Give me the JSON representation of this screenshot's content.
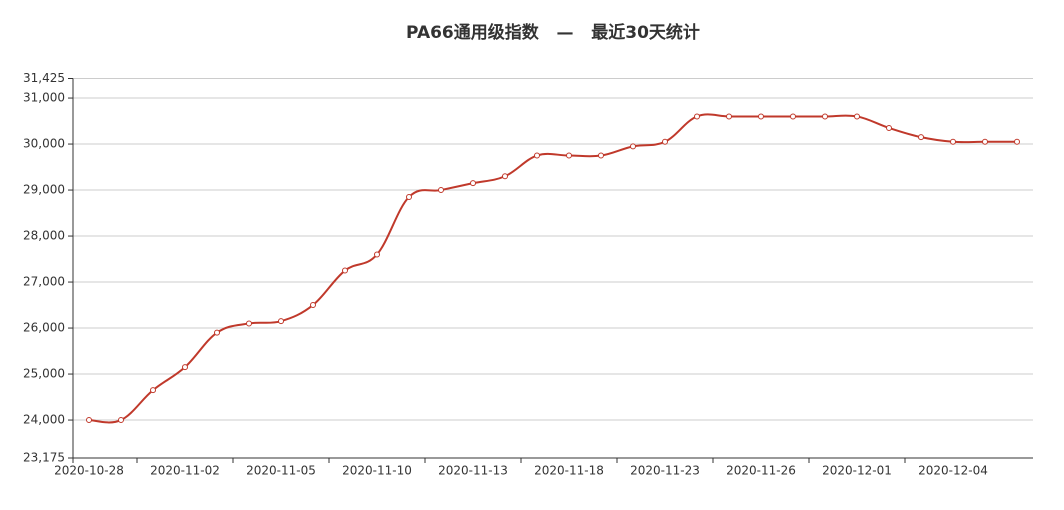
{
  "chart_data": {
    "type": "line",
    "title": "PA66通用级指数   —   最近30天统计",
    "categories": [
      "2020-10-28",
      null,
      null,
      "2020-11-02",
      null,
      null,
      "2020-11-05",
      null,
      null,
      "2020-11-10",
      null,
      null,
      "2020-11-13",
      null,
      null,
      "2020-11-18",
      null,
      null,
      "2020-11-23",
      null,
      null,
      "2020-11-26",
      null,
      null,
      "2020-12-01",
      null,
      null,
      "2020-12-04",
      null,
      null
    ],
    "series": [
      {
        "name": "PA66通用级指数",
        "color": "#c0392b",
        "values": [
          24000,
          24000,
          24650,
          25150,
          25900,
          26100,
          26150,
          26500,
          27250,
          27600,
          28850,
          29000,
          29150,
          29300,
          29750,
          29750,
          29750,
          29950,
          30050,
          30600,
          30600,
          30600,
          30600,
          30600,
          30600,
          30350,
          30150,
          30050,
          30050,
          30050
        ]
      }
    ],
    "ylim": [
      23175,
      31425
    ],
    "yticks": [
      {
        "value": 23175,
        "label": "23,175"
      },
      {
        "value": 24000,
        "label": "24,000"
      },
      {
        "value": 25000,
        "label": "25,000"
      },
      {
        "value": 26000,
        "label": "26,000"
      },
      {
        "value": 27000,
        "label": "27,000"
      },
      {
        "value": 28000,
        "label": "28,000"
      },
      {
        "value": 29000,
        "label": "29,000"
      },
      {
        "value": 30000,
        "label": "30,000"
      },
      {
        "value": 31000,
        "label": "31,000"
      },
      {
        "value": 31425,
        "label": "31,425"
      }
    ],
    "grid": true
  }
}
